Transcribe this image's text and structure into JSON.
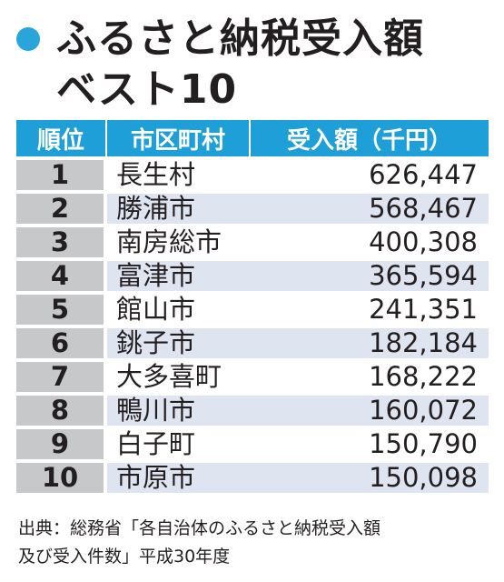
{
  "title": {
    "line1": "ふるさと納税受入額",
    "line2": "ベスト10"
  },
  "table": {
    "headers": [
      "順位",
      "市区町村",
      "受入額（千円）"
    ]
  },
  "chart_data": {
    "type": "table",
    "title": "ふるさと納税受入額ベスト10",
    "columns": [
      "順位",
      "市区町村",
      "受入額（千円）"
    ],
    "rows": [
      {
        "rank": "1",
        "municipality": "長生村",
        "amount": "626,447"
      },
      {
        "rank": "2",
        "municipality": "勝浦市",
        "amount": "568,467"
      },
      {
        "rank": "3",
        "municipality": "南房総市",
        "amount": "400,308"
      },
      {
        "rank": "4",
        "municipality": "富津市",
        "amount": "365,594"
      },
      {
        "rank": "5",
        "municipality": "館山市",
        "amount": "241,351"
      },
      {
        "rank": "6",
        "municipality": "銚子市",
        "amount": "182,184"
      },
      {
        "rank": "7",
        "municipality": "大多喜町",
        "amount": "168,222"
      },
      {
        "rank": "8",
        "municipality": "鴨川市",
        "amount": "160,072"
      },
      {
        "rank": "9",
        "municipality": "白子町",
        "amount": "150,790"
      },
      {
        "rank": "10",
        "municipality": "市原市",
        "amount": "150,098"
      }
    ]
  },
  "source": {
    "line1": "出典：総務省「各自治体のふるさと納税受入額",
    "line2": "及び受入件数」平成30年度"
  },
  "colors": {
    "accent": "#1e9fd8",
    "rank_bg": "#c7c8ca",
    "stripe": "#dfe4f1"
  }
}
